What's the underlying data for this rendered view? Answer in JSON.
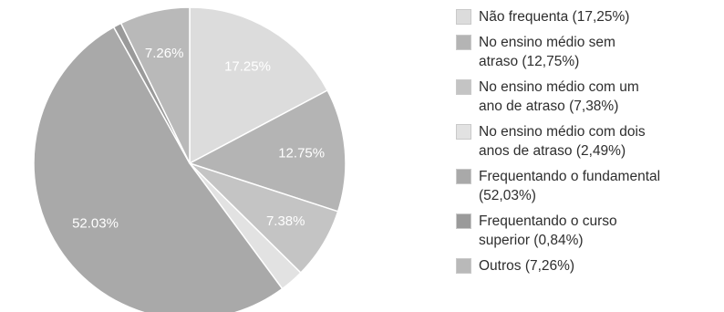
{
  "chart_data": {
    "type": "pie",
    "title": "",
    "start_angle_deg": 0,
    "direction": "clockwise",
    "slices": [
      {
        "label": "Não frequenta (17,25%)",
        "value": 17.25,
        "data_label": "17.25%",
        "color": "#dcdcdc",
        "legend_lines": [
          "Não frequenta (17,25%)"
        ]
      },
      {
        "label": "No ensino médio sem atraso (12,75%)",
        "value": 12.75,
        "data_label": "12.75%",
        "color": "#b4b4b4",
        "legend_lines": [
          "No ensino médio sem",
          "atraso (12,75%)"
        ]
      },
      {
        "label": "No ensino médio com um ano de atraso (7,38%)",
        "value": 7.38,
        "data_label": "7.38%",
        "color": "#c4c4c4",
        "legend_lines": [
          "No ensino médio com um",
          "ano de atraso (7,38%)"
        ]
      },
      {
        "label": "No ensino médio com dois anos de atraso (2,49%)",
        "value": 2.49,
        "data_label": "",
        "color": "#e2e2e2",
        "legend_lines": [
          "No ensino médio com dois",
          "anos de atraso (2,49%)"
        ]
      },
      {
        "label": "Frequentando o fundamental (52,03%)",
        "value": 52.03,
        "data_label": "52.03%",
        "color": "#a9a9a9",
        "legend_lines": [
          "Frequentando o fundamental",
          "(52,03%)"
        ]
      },
      {
        "label": "Frequentando o curso superior (0,84%)",
        "value": 0.84,
        "data_label": "",
        "color": "#9a9a9a",
        "legend_lines": [
          "Frequentando o curso",
          "superior (0,84%)"
        ]
      },
      {
        "label": "Outros (7,26%)",
        "value": 7.26,
        "data_label": "7.26%",
        "color": "#b9b9b9",
        "legend_lines": [
          "Outros (7,26%)"
        ]
      }
    ],
    "legend_position": "right"
  }
}
